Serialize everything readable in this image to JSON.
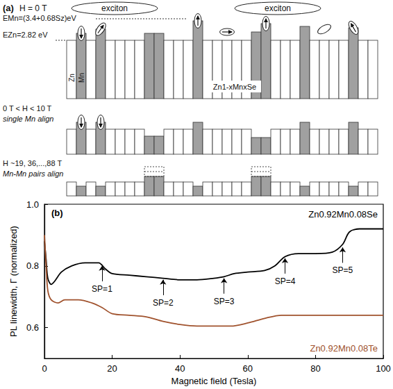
{
  "panel_a": {
    "label": "(a)",
    "exciton_labels": [
      "exciton",
      "exciton"
    ],
    "levels": {
      "mn": "EMn=(3.4+0.68Sz)eV",
      "zn": "EZn=2.82 eV"
    },
    "column_labels": [
      "Zn",
      "Mn"
    ],
    "material": "Zn1-xMnxSe",
    "rows": [
      {
        "title": "H = 0 T"
      },
      {
        "title": "0 T < H < 10 T",
        "subtitle": "single Mn align"
      },
      {
        "title": "H ~19, 36,...,88 T",
        "subtitle": "Mn-Mn pairs align"
      }
    ]
  },
  "chart_data": {
    "type": "line",
    "panel_label": "(b)",
    "x_label": "Magnetic field (Tesla)",
    "y_label": "PL linewidth, Γ (normalized)",
    "xlim": [
      0,
      100
    ],
    "xticks": [
      0,
      20,
      40,
      60,
      80,
      100
    ],
    "ylim": [
      0.5,
      1.0
    ],
    "yticks": [
      0.6,
      0.8,
      {
        "value": 1.0,
        "label": "1.0"
      }
    ],
    "grid": false,
    "series": [
      {
        "name": "Zn0.92Mn0.08Se",
        "color": "#000000",
        "x": [
          0,
          0.5,
          1,
          2,
          3,
          5,
          8,
          12,
          16,
          18,
          20,
          25,
          30,
          35,
          40,
          45,
          50,
          53,
          56,
          60,
          65,
          68,
          71,
          75,
          80,
          85,
          88,
          90,
          93,
          100
        ],
        "values": [
          0.88,
          0.82,
          0.76,
          0.74,
          0.75,
          0.78,
          0.8,
          0.81,
          0.81,
          0.79,
          0.775,
          0.77,
          0.765,
          0.76,
          0.755,
          0.755,
          0.76,
          0.765,
          0.775,
          0.78,
          0.785,
          0.8,
          0.83,
          0.84,
          0.84,
          0.845,
          0.87,
          0.91,
          0.92,
          0.92
        ],
        "annotations": [
          {
            "text": "SP=1",
            "x": 17,
            "y": 0.8
          },
          {
            "text": "SP=2",
            "x": 35,
            "y": 0.755
          },
          {
            "text": "SP=3",
            "x": 53,
            "y": 0.76
          },
          {
            "text": "SP=4",
            "x": 71,
            "y": 0.825
          },
          {
            "text": "SP=5",
            "x": 88,
            "y": 0.86
          }
        ]
      },
      {
        "name": "Zn0.92Mn0.08Te",
        "color": "#a0522d",
        "x": [
          0,
          0.5,
          1,
          2,
          4,
          6,
          10,
          14,
          17,
          20,
          25,
          30,
          35,
          40,
          45,
          55,
          60,
          65,
          70,
          80,
          100
        ],
        "values": [
          0.9,
          0.8,
          0.72,
          0.69,
          0.68,
          0.69,
          0.69,
          0.68,
          0.665,
          0.645,
          0.64,
          0.635,
          0.62,
          0.61,
          0.605,
          0.605,
          0.615,
          0.63,
          0.64,
          0.64,
          0.64
        ]
      }
    ]
  }
}
